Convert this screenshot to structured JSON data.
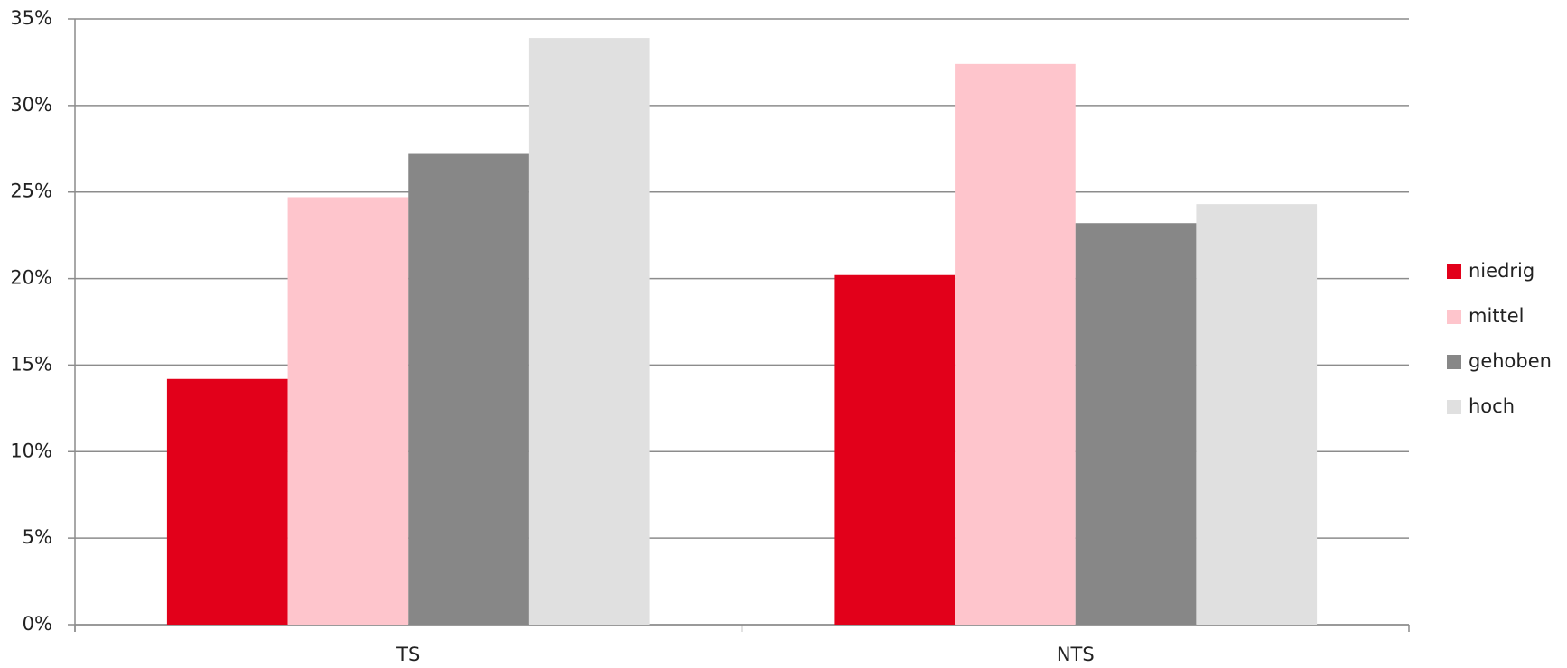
{
  "chart_data": {
    "type": "bar",
    "categories": [
      "TS",
      "NTS"
    ],
    "series": [
      {
        "name": "niedrig",
        "color": "#e2001a",
        "values": [
          14.2,
          20.2
        ]
      },
      {
        "name": "mittel",
        "color": "#fec5cc",
        "values": [
          24.7,
          32.4
        ]
      },
      {
        "name": "gehoben",
        "color": "#878787",
        "values": [
          27.2,
          23.2
        ]
      },
      {
        "name": "hoch",
        "color": "#e0e0e0",
        "values": [
          33.9,
          24.3
        ]
      }
    ],
    "ylim": [
      0,
      35
    ],
    "yticks": [
      {
        "value": 0,
        "label": "0%"
      },
      {
        "value": 5,
        "label": "5%"
      },
      {
        "value": 10,
        "label": "10%"
      },
      {
        "value": 15,
        "label": "15%"
      },
      {
        "value": 20,
        "label": "20%"
      },
      {
        "value": 25,
        "label": "25%"
      },
      {
        "value": 30,
        "label": "30%"
      },
      {
        "value": 35,
        "label": "35%"
      }
    ],
    "grid": true,
    "legend": "right"
  }
}
